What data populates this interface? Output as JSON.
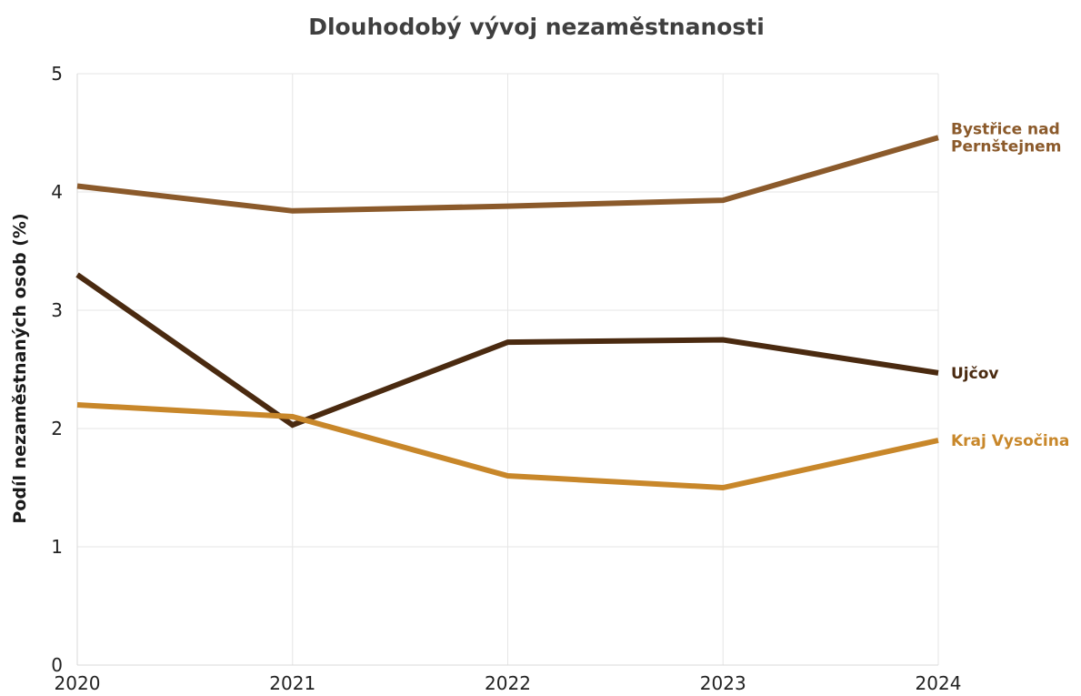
{
  "chart_data": {
    "type": "line",
    "title": "Dlouhodobý vývoj nezaměstnanosti",
    "xlabel": "",
    "ylabel": "Podíl nezaměstnaných osob (%)",
    "x": [
      2020,
      2021,
      2022,
      2023,
      2024
    ],
    "x_tick_labels": [
      "2020",
      "2021",
      "2022",
      "2023",
      "2024"
    ],
    "ylim": [
      0,
      5
    ],
    "y_ticks": [
      0,
      1,
      2,
      3,
      4,
      5
    ],
    "y_tick_labels": [
      "0",
      "1",
      "2",
      "3",
      "4",
      "5"
    ],
    "grid": true,
    "legend": "direct labels at right end of lines",
    "series": [
      {
        "name": "Bystřice nad Pernštejnem",
        "label_lines": [
          "Bystřice nad",
          "Pernštejnem"
        ],
        "color": "#8b5a2b",
        "values": [
          4.05,
          3.84,
          3.88,
          3.93,
          4.46
        ]
      },
      {
        "name": "Ujčov",
        "label_lines": [
          "Ujčov"
        ],
        "color": "#4a2a10",
        "values": [
          3.3,
          2.03,
          2.73,
          2.75,
          2.47
        ]
      },
      {
        "name": "Kraj Vysočina",
        "label_lines": [
          "Kraj Vysočina"
        ],
        "color": "#c8872a",
        "values": [
          2.2,
          2.1,
          1.6,
          1.5,
          1.9
        ]
      }
    ]
  }
}
